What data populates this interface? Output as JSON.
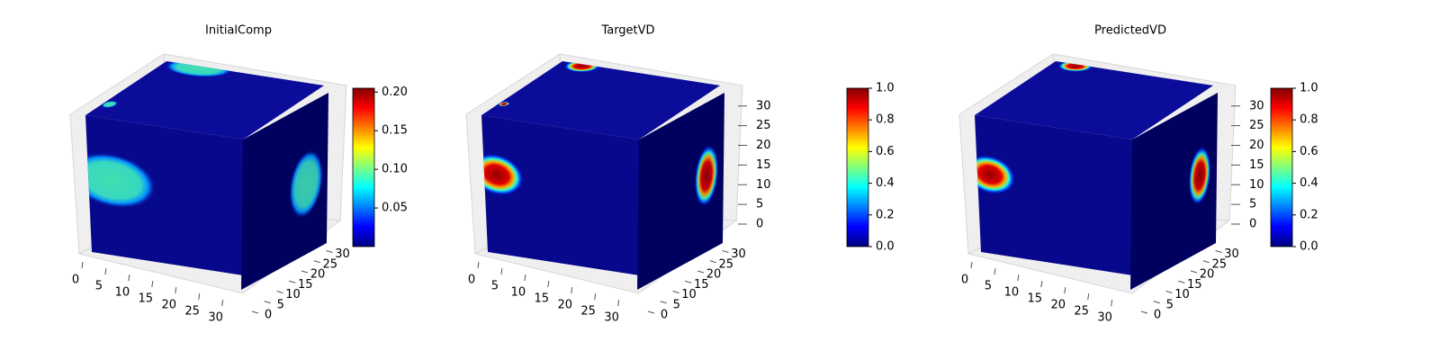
{
  "chart_data": [
    {
      "type": "voxel",
      "title": "InitialComp",
      "colormap": "jet",
      "xlim": [
        0,
        32
      ],
      "xticks": [
        0,
        5,
        10,
        15,
        20,
        25,
        30
      ],
      "ylim": [
        0,
        32
      ],
      "yticks": [
        0,
        5,
        10,
        15,
        20,
        25,
        30
      ],
      "colorbar": {
        "lim": [
          0,
          0.205
        ],
        "ticks": [
          0.05,
          {
            "value": 0.1,
            "label": "0.10"
          },
          0.15,
          {
            "value": 0.2,
            "label": "0.20"
          }
        ]
      }
    },
    {
      "type": "voxel",
      "title": "TargetVD",
      "colormap": "jet",
      "xlim": [
        0,
        32
      ],
      "xticks": [
        0,
        5,
        10,
        15,
        20,
        25,
        30
      ],
      "ylim": [
        0,
        32
      ],
      "yticks": [
        0,
        5,
        10,
        15,
        20,
        25,
        30
      ],
      "zlim": [
        0,
        32
      ],
      "zticks": [
        0,
        5,
        10,
        15,
        20,
        25,
        30
      ],
      "colorbar": {
        "lim": [
          0,
          1
        ],
        "ticks": [
          {
            "value": 0,
            "label": "0.0"
          },
          0.2,
          0.4,
          0.6,
          0.8,
          {
            "value": 1,
            "label": "1.0"
          }
        ]
      }
    },
    {
      "type": "voxel",
      "title": "PredictedVD",
      "colormap": "jet",
      "xlim": [
        0,
        32
      ],
      "xticks": [
        0,
        5,
        10,
        15,
        20,
        25,
        30
      ],
      "ylim": [
        0,
        32
      ],
      "yticks": [
        0,
        5,
        10,
        15,
        20,
        25,
        30
      ],
      "zlim": [
        0,
        32
      ],
      "zticks": [
        0,
        5,
        10,
        15,
        20,
        25,
        30
      ],
      "colorbar": {
        "lim": [
          0,
          1
        ],
        "ticks": [
          {
            "value": 0,
            "label": "0.0"
          },
          0.2,
          0.4,
          0.6,
          0.8,
          {
            "value": 1,
            "label": "1.0"
          }
        ]
      }
    }
  ]
}
